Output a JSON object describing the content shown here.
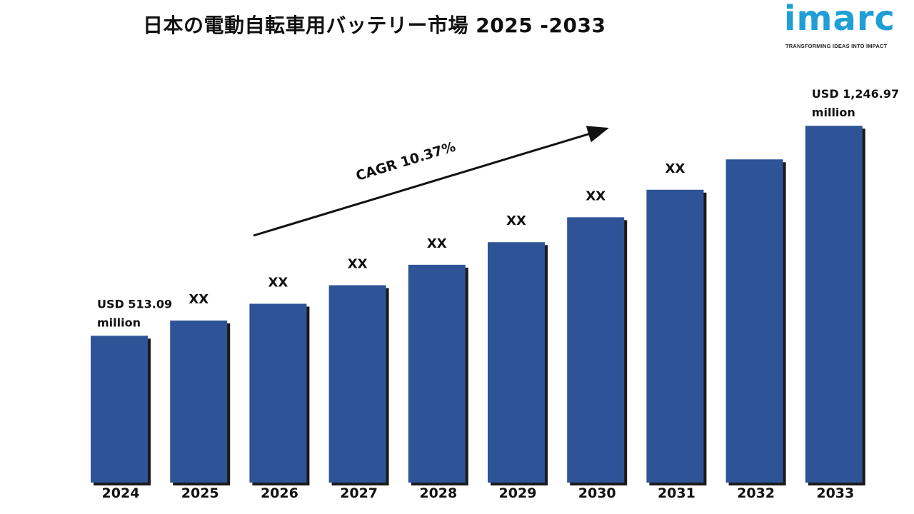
{
  "title": "日本の電動自転車用バッテリー市場 2025 -2033",
  "logo": {
    "wordmark": "imarc",
    "tagline": "TRANSFORMING IDEAS INTO IMPACT"
  },
  "colors": {
    "bar": "#2e5497",
    "bar_shadow": "#1a1a1a",
    "text": "#111111",
    "logo": "#1f9fd6"
  },
  "cagr_label": "CAGR 10.37%",
  "chart_data": {
    "type": "bar",
    "categories": [
      "2024",
      "2025",
      "2026",
      "2027",
      "2028",
      "2029",
      "2030",
      "2031",
      "2032",
      "2033"
    ],
    "values": [
      513.09,
      566.3,
      625.0,
      689.8,
      761.3,
      840.2,
      927.3,
      1023.5,
      1129.6,
      1246.97
    ],
    "data_labels": [
      "USD 513.09 million",
      "XX",
      "XX",
      "XX",
      "XX",
      "XX",
      "XX",
      "XX",
      "",
      "USD 1,246.97 million"
    ],
    "ylim": [
      0,
      1250
    ],
    "grid": false,
    "legend": "none",
    "title": "日本の電動自転車用バッテリー市場 2025 -2033",
    "annotation": "CAGR 10.37%"
  }
}
